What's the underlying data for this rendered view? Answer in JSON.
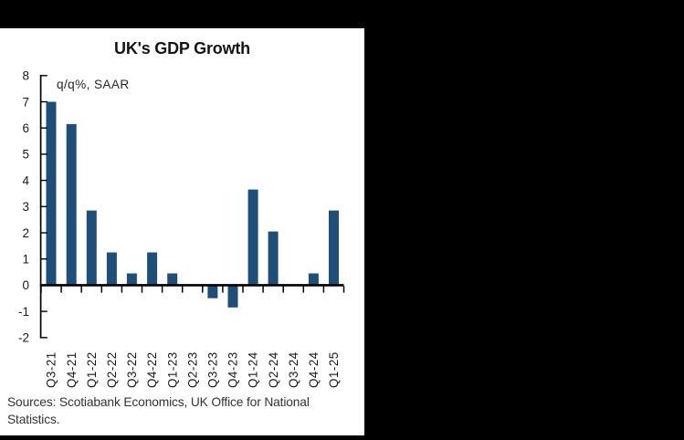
{
  "frame": {
    "background_color": "#000000",
    "panel_color": "#ffffff"
  },
  "chart_data": {
    "type": "bar",
    "title": "UK's GDP Growth",
    "annotation": "q/q%, SAAR",
    "categories": [
      "Q3-21",
      "Q4-21",
      "Q1-22",
      "Q2-22",
      "Q3-22",
      "Q4-22",
      "Q1-23",
      "Q2-23",
      "Q3-23",
      "Q4-23",
      "Q1-24",
      "Q2-24",
      "Q3-24",
      "Q4-24",
      "Q1-25"
    ],
    "values": [
      7.0,
      6.15,
      2.85,
      1.25,
      0.45,
      1.25,
      0.45,
      0,
      -0.5,
      -0.85,
      3.65,
      2.05,
      0,
      0.45,
      2.85
    ],
    "xlabel": "",
    "ylabel": "",
    "ylim": [
      -2,
      8
    ],
    "ytick_step": 1,
    "grid": false,
    "legend": "none",
    "bar_color": "#1f4e79",
    "axis_color": "#000000",
    "tick_label_color": "#1a1a1a"
  },
  "source_note": "Sources: Scotiabank Economics, UK Office for National Statistics."
}
